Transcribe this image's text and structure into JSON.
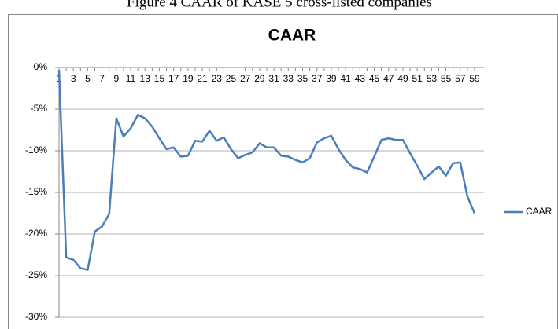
{
  "caption": "Figure 4 CAAR of KASE 5 cross-listed companies",
  "chart_data": {
    "type": "line",
    "title": "CAAR",
    "categories": [
      1,
      null,
      3,
      null,
      5,
      null,
      7,
      null,
      9,
      null,
      11,
      null,
      13,
      null,
      15,
      null,
      17,
      null,
      19,
      null,
      21,
      null,
      23,
      null,
      25,
      null,
      27,
      null,
      29,
      null,
      31,
      null,
      33,
      null,
      35,
      null,
      37,
      null,
      39,
      null,
      41,
      null,
      43,
      null,
      45,
      null,
      47,
      null,
      49,
      null,
      51,
      null,
      53,
      null,
      55,
      null,
      57,
      null,
      59
    ],
    "series": [
      {
        "name": "CAAR",
        "color": "#4a7ebb",
        "values": [
          -0.3,
          -22.8,
          -23.1,
          -24.1,
          -24.3,
          -19.7,
          -19.1,
          -17.6,
          -6.1,
          -8.3,
          -7.3,
          -5.7,
          -6.1,
          -7.1,
          -8.5,
          -9.8,
          -9.6,
          -10.7,
          -10.6,
          -8.8,
          -8.9,
          -7.6,
          -8.8,
          -8.4,
          -9.8,
          -10.9,
          -10.5,
          -10.2,
          -9.1,
          -9.6,
          -9.6,
          -10.6,
          -10.7,
          -11.1,
          -11.4,
          -10.9,
          -9.0,
          -8.5,
          -8.2,
          -9.8,
          -11.1,
          -12.0,
          -12.2,
          -12.6,
          -10.7,
          -8.7,
          -8.5,
          -8.7,
          -8.7,
          -10.3,
          -11.8,
          -13.4,
          -12.6,
          -11.9,
          -13.0,
          -11.5,
          -11.4,
          -15.5,
          -17.5
        ]
      }
    ],
    "ylim": [
      -30,
      0
    ],
    "yticks": [
      {
        "value": 0,
        "label": "0%"
      },
      {
        "value": -5,
        "label": "-5%"
      },
      {
        "value": -10,
        "label": "-10%"
      },
      {
        "value": -15,
        "label": "-15%"
      },
      {
        "value": -20,
        "label": "-20%"
      },
      {
        "value": -25,
        "label": "-25%"
      },
      {
        "value": -30,
        "label": "-30%"
      }
    ],
    "grid": true,
    "legend": "right"
  }
}
